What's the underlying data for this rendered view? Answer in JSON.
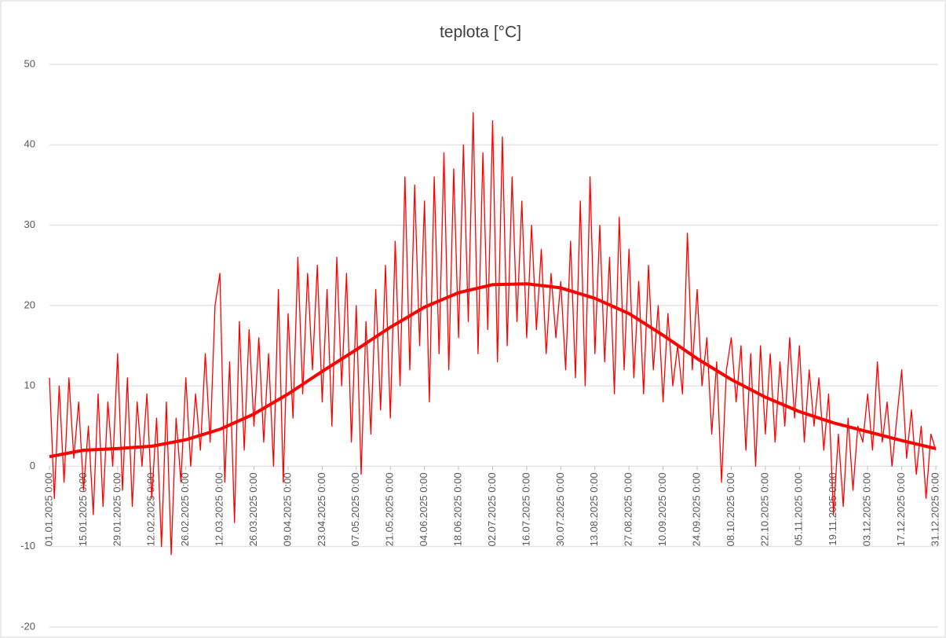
{
  "chart_data": {
    "type": "line",
    "title": "teplota [°C]",
    "xlim": [
      0,
      364
    ],
    "xticks": [
      {
        "value": 0,
        "label": "01.01.2025 0:00"
      },
      {
        "value": 14,
        "label": "15.01.2025 0:00"
      },
      {
        "value": 28,
        "label": "29.01.2025 0:00"
      },
      {
        "value": 42,
        "label": "12.02.2025 0:00"
      },
      {
        "value": 56,
        "label": "26.02.2025 0:00"
      },
      {
        "value": 70,
        "label": "12.03.2025 0:00"
      },
      {
        "value": 84,
        "label": "26.03.2025 0:00"
      },
      {
        "value": 98,
        "label": "09.04.2025 0:00"
      },
      {
        "value": 112,
        "label": "23.04.2025 0:00"
      },
      {
        "value": 126,
        "label": "07.05.2025 0:00"
      },
      {
        "value": 140,
        "label": "21.05.2025 0:00"
      },
      {
        "value": 154,
        "label": "04.06.2025 0:00"
      },
      {
        "value": 168,
        "label": "18.06.2025 0:00"
      },
      {
        "value": 182,
        "label": "02.07.2025 0:00"
      },
      {
        "value": 196,
        "label": "16.07.2025 0:00"
      },
      {
        "value": 210,
        "label": "30.07.2025 0:00"
      },
      {
        "value": 224,
        "label": "13.08.2025 0:00"
      },
      {
        "value": 238,
        "label": "27.08.2025 0:00"
      },
      {
        "value": 252,
        "label": "10.09.2025 0:00"
      },
      {
        "value": 266,
        "label": "24.09.2025 0:00"
      },
      {
        "value": 280,
        "label": "08.10.2025 0:00"
      },
      {
        "value": 294,
        "label": "22.10.2025 0:00"
      },
      {
        "value": 308,
        "label": "05.11.2025 0:00"
      },
      {
        "value": 322,
        "label": "19.11.2025 0:00"
      },
      {
        "value": 336,
        "label": "03.12.2025 0:00"
      },
      {
        "value": 350,
        "label": "17.12.2025 0:00"
      },
      {
        "value": 364,
        "label": "31.12.2025 0:00"
      }
    ],
    "ylim": [
      -20,
      50
    ],
    "yticks": [
      -20,
      -10,
      0,
      10,
      20,
      30,
      40,
      50
    ],
    "grid": true,
    "series": [
      {
        "color": "#ff0000",
        "width": 1.3,
        "step": 2,
        "values": [
          11,
          -4,
          10,
          -2,
          11,
          1,
          8,
          -3,
          5,
          -6,
          9,
          -5,
          8,
          0,
          14,
          -3,
          11,
          -5,
          8,
          0,
          9,
          -4,
          6,
          -10,
          8,
          -11,
          6,
          -2,
          11,
          0,
          9,
          2,
          14,
          3,
          20,
          24,
          -2,
          13,
          -7,
          18,
          2,
          17,
          5,
          16,
          3,
          14,
          0,
          22,
          -2,
          19,
          6,
          26,
          9,
          24,
          12,
          25,
          8,
          22,
          5,
          26,
          10,
          24,
          3,
          20,
          -1,
          18,
          4,
          22,
          7,
          25,
          6,
          28,
          10,
          36,
          12,
          35,
          15,
          33,
          8,
          36,
          14,
          39,
          12,
          37,
          16,
          40,
          18,
          44,
          14,
          39,
          17,
          43,
          13,
          41,
          15,
          36,
          18,
          33,
          16,
          30,
          17,
          27,
          14,
          24,
          16,
          23,
          12,
          28,
          11,
          33,
          10,
          36,
          14,
          30,
          13,
          26,
          9,
          31,
          12,
          27,
          11,
          23,
          9,
          25,
          12,
          20,
          8,
          19,
          10,
          15,
          9,
          29,
          12,
          22,
          10,
          16,
          4,
          13,
          -2,
          12,
          16,
          8,
          15,
          2,
          14,
          0,
          15,
          4,
          14,
          3,
          13,
          5,
          16,
          6,
          15,
          3,
          12,
          5,
          11,
          2,
          9,
          -6,
          4,
          -5,
          6,
          -3,
          5,
          3,
          9,
          2,
          13,
          3,
          8,
          0,
          6,
          12,
          1,
          7,
          -1,
          5,
          -4,
          4,
          2
        ]
      },
      {
        "color": "#ff0000",
        "width": 4,
        "step": 14,
        "values": [
          1.2,
          2.0,
          2.2,
          2.5,
          3.3,
          4.6,
          6.5,
          9.0,
          11.8,
          14.5,
          17.3,
          19.8,
          21.6,
          22.6,
          22.7,
          22.2,
          20.9,
          19.0,
          16.3,
          13.4,
          10.8,
          8.6,
          6.8,
          5.4,
          4.3,
          3.2,
          2.2
        ]
      }
    ]
  }
}
